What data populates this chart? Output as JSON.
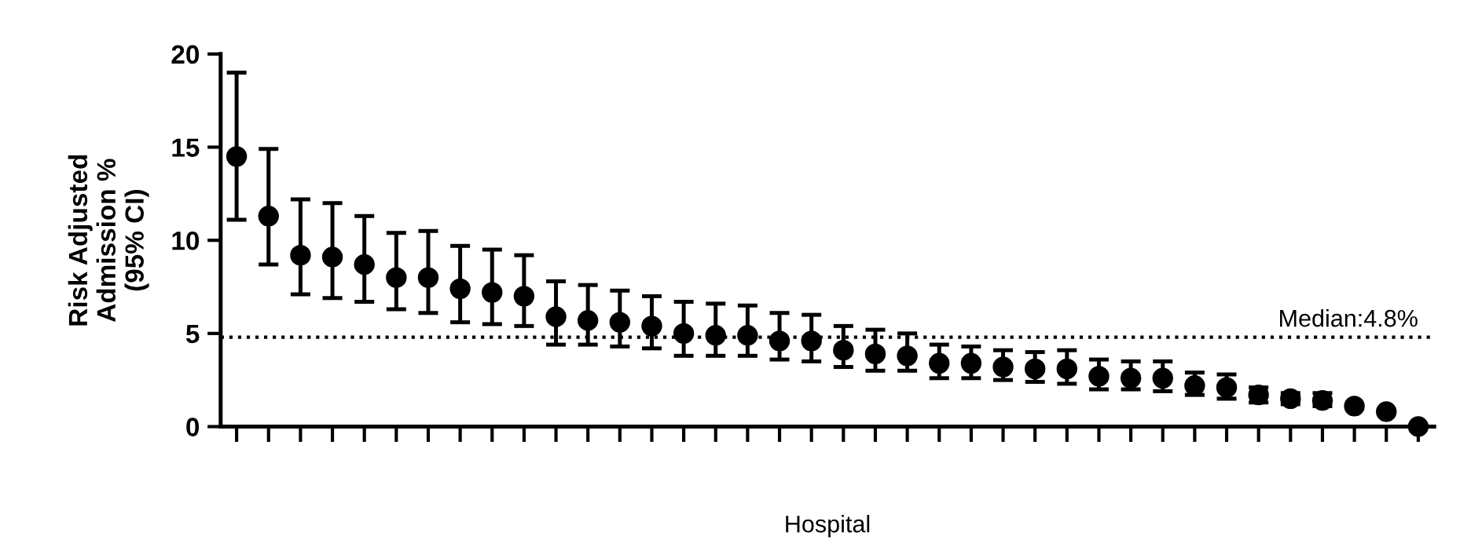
{
  "chart_data": {
    "type": "scatter",
    "xlabel": "Hospital",
    "ylabel": "Risk Adjusted\nAdmission %\n(95% CI)",
    "categories": [
      null,
      null,
      null,
      null,
      null,
      null,
      null,
      null,
      null,
      null,
      null,
      null,
      null,
      null,
      null,
      null,
      null,
      null,
      null,
      null,
      null,
      null,
      null,
      null,
      null,
      null,
      null,
      null,
      null,
      null,
      null,
      null,
      null,
      null,
      null,
      null,
      null,
      null
    ],
    "series": [
      {
        "color": "#000000",
        "values": [
          14.5,
          11.3,
          9.2,
          9.1,
          8.7,
          8.0,
          8.0,
          7.4,
          7.2,
          7.0,
          5.9,
          5.7,
          5.6,
          5.4,
          5.0,
          4.9,
          4.9,
          4.6,
          4.6,
          4.1,
          3.9,
          3.8,
          3.4,
          3.4,
          3.2,
          3.1,
          3.1,
          2.7,
          2.6,
          2.6,
          2.2,
          2.1,
          1.7,
          1.5,
          1.4,
          1.1,
          0.8,
          0
        ],
        "errors": [
          [
            11.1,
            19.0
          ],
          [
            8.7,
            14.9
          ],
          [
            7.1,
            12.2
          ],
          [
            6.9,
            12.0
          ],
          [
            6.7,
            11.3
          ],
          [
            6.3,
            10.4
          ],
          [
            6.1,
            10.5
          ],
          [
            5.6,
            9.7
          ],
          [
            5.5,
            9.5
          ],
          [
            5.4,
            9.2
          ],
          [
            4.4,
            7.8
          ],
          [
            4.4,
            7.6
          ],
          [
            4.3,
            7.3
          ],
          [
            4.2,
            7.0
          ],
          [
            3.8,
            6.7
          ],
          [
            3.8,
            6.6
          ],
          [
            3.8,
            6.5
          ],
          [
            3.6,
            6.1
          ],
          [
            3.5,
            6.0
          ],
          [
            3.2,
            5.4
          ],
          [
            3.0,
            5.2
          ],
          [
            3.0,
            5.0
          ],
          [
            2.6,
            4.4
          ],
          [
            2.6,
            4.3
          ],
          [
            2.5,
            4.1
          ],
          [
            2.4,
            4.0
          ],
          [
            2.3,
            4.1
          ],
          [
            2.0,
            3.6
          ],
          [
            2.0,
            3.5
          ],
          [
            1.9,
            3.5
          ],
          [
            1.7,
            2.9
          ],
          [
            1.5,
            2.8
          ],
          [
            1.3,
            2.1
          ],
          [
            1.2,
            1.8
          ],
          [
            1.1,
            1.8
          ],
          null,
          null,
          null
        ]
      }
    ],
    "marker": "circle",
    "ylim": [
      0,
      20
    ],
    "yticks": [
      0,
      5,
      10,
      15,
      20
    ],
    "grid": false,
    "legend": false,
    "ref_lines": [
      {
        "axis": "y",
        "value": 4.8,
        "label": "Median:4.8%",
        "line_style": "dotted",
        "color": "#000000"
      }
    ]
  }
}
